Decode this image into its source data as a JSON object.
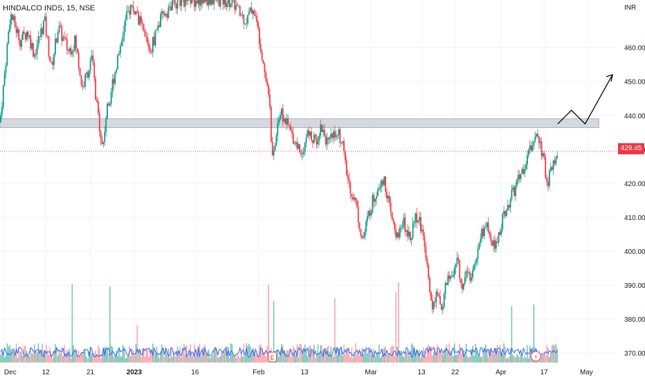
{
  "chart_data": {
    "type": "candlestick",
    "title": "HINDALCO INDS, 15, NSE",
    "currency": "INR",
    "last_price": "429.45",
    "y_ticks": [
      "370.00",
      "380.00",
      "390.00",
      "400.00",
      "410.00",
      "420.00",
      "430.00",
      "440.00",
      "450.00",
      "460.00"
    ],
    "x_ticks": [
      "Dec",
      "12",
      "21",
      "2023",
      "16",
      "Feb",
      "13",
      "Mar",
      "13",
      "22",
      "Apr",
      "17",
      "May"
    ],
    "ylim": [
      368,
      474
    ],
    "resistance_zone": [
      436.4,
      439
    ],
    "series": [
      {
        "x": 0,
        "y": 438
      },
      {
        "x": 1.5,
        "y": 470
      },
      {
        "x": 3,
        "y": 462
      },
      {
        "x": 4,
        "y": 465
      },
      {
        "x": 5,
        "y": 458
      },
      {
        "x": 6.5,
        "y": 468
      },
      {
        "x": 7.5,
        "y": 454
      },
      {
        "x": 8.5,
        "y": 466
      },
      {
        "x": 10,
        "y": 459
      },
      {
        "x": 11,
        "y": 462
      },
      {
        "x": 12,
        "y": 448
      },
      {
        "x": 13.5,
        "y": 457
      },
      {
        "x": 14,
        "y": 444
      },
      {
        "x": 14.5,
        "y": 438
      },
      {
        "x": 15,
        "y": 430
      },
      {
        "x": 15.5,
        "y": 440
      },
      {
        "x": 16,
        "y": 445
      },
      {
        "x": 17,
        "y": 455
      },
      {
        "x": 18,
        "y": 465
      },
      {
        "x": 19,
        "y": 472
      },
      {
        "x": 20,
        "y": 470
      },
      {
        "x": 21,
        "y": 464
      },
      {
        "x": 22,
        "y": 459
      },
      {
        "x": 23,
        "y": 466
      },
      {
        "x": 24,
        "y": 470
      },
      {
        "x": 25,
        "y": 472
      },
      {
        "x": 26,
        "y": 474
      },
      {
        "x": 27,
        "y": 474
      },
      {
        "x": 28,
        "y": 474
      },
      {
        "x": 29,
        "y": 474
      },
      {
        "x": 30,
        "y": 474
      },
      {
        "x": 31,
        "y": 474
      },
      {
        "x": 32,
        "y": 474
      },
      {
        "x": 33,
        "y": 474
      },
      {
        "x": 34,
        "y": 474
      },
      {
        "x": 35,
        "y": 470
      },
      {
        "x": 36,
        "y": 468
      },
      {
        "x": 37,
        "y": 472
      },
      {
        "x": 38,
        "y": 462
      },
      {
        "x": 38.8,
        "y": 452
      },
      {
        "x": 39.5,
        "y": 443
      },
      {
        "x": 39.7,
        "y": 428
      },
      {
        "x": 40,
        "y": 428
      },
      {
        "x": 40.5,
        "y": 438
      },
      {
        "x": 41,
        "y": 441
      },
      {
        "x": 42,
        "y": 437
      },
      {
        "x": 43,
        "y": 433
      },
      {
        "x": 44,
        "y": 429
      },
      {
        "x": 45,
        "y": 435
      },
      {
        "x": 46,
        "y": 432
      },
      {
        "x": 47,
        "y": 437
      },
      {
        "x": 48,
        "y": 431
      },
      {
        "x": 49,
        "y": 436
      },
      {
        "x": 50,
        "y": 433
      },
      {
        "x": 50.5,
        "y": 424
      },
      {
        "x": 51,
        "y": 420
      },
      {
        "x": 52,
        "y": 414
      },
      {
        "x": 53,
        "y": 403
      },
      {
        "x": 54,
        "y": 412
      },
      {
        "x": 55,
        "y": 418
      },
      {
        "x": 55.8,
        "y": 422
      },
      {
        "x": 56.5,
        "y": 418
      },
      {
        "x": 57,
        "y": 411
      },
      {
        "x": 58,
        "y": 404
      },
      {
        "x": 59,
        "y": 408
      },
      {
        "x": 60,
        "y": 405
      },
      {
        "x": 61,
        "y": 411
      },
      {
        "x": 62,
        "y": 403
      },
      {
        "x": 62.5,
        "y": 396
      },
      {
        "x": 63,
        "y": 384
      },
      {
        "x": 64,
        "y": 387
      },
      {
        "x": 64.5,
        "y": 382
      },
      {
        "x": 65,
        "y": 390
      },
      {
        "x": 66,
        "y": 393
      },
      {
        "x": 67,
        "y": 397
      },
      {
        "x": 67.5,
        "y": 388
      },
      {
        "x": 68,
        "y": 395
      },
      {
        "x": 69,
        "y": 392
      },
      {
        "x": 70,
        "y": 403
      },
      {
        "x": 71,
        "y": 408
      },
      {
        "x": 72,
        "y": 401
      },
      {
        "x": 73,
        "y": 406
      },
      {
        "x": 74,
        "y": 413
      },
      {
        "x": 75,
        "y": 417
      },
      {
        "x": 76,
        "y": 422
      },
      {
        "x": 77,
        "y": 427
      },
      {
        "x": 78,
        "y": 433
      },
      {
        "x": 78.5,
        "y": 436
      },
      {
        "x": 79,
        "y": 431
      },
      {
        "x": 79.5,
        "y": 426
      },
      {
        "x": 80,
        "y": 420
      },
      {
        "x": 80.8,
        "y": 426
      },
      {
        "x": 81.5,
        "y": 429.45
      }
    ],
    "projection": [
      {
        "x": 81.5,
        "y": 437.5
      },
      {
        "x": 83.5,
        "y": 441.5
      },
      {
        "x": 85.5,
        "y": 437.5
      },
      {
        "x": 89.5,
        "y": 452
      }
    ]
  },
  "colors": {
    "up": "#089981",
    "down": "#f23645",
    "volume_up": "#76c4b6",
    "volume_down": "#f7a5aa",
    "volume_ma": "#2962ff",
    "zone_fill": "#d1d4dc",
    "grid": "#f0f3fa",
    "price_line": "#f23645",
    "axis_text": "#131722",
    "projection": "#000000"
  },
  "icons": {
    "earnings_marker": "E",
    "lightning": "⚡"
  }
}
